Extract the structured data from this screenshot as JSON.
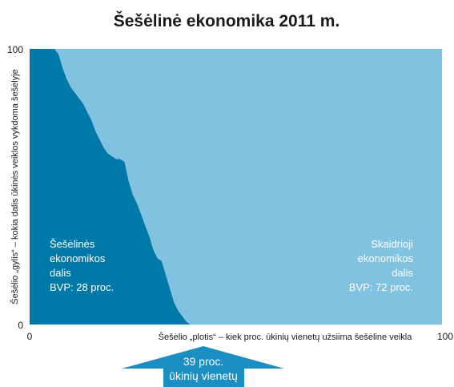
{
  "chart_data": {
    "type": "area",
    "title": "Šešėlinė ekonomika 2011 m.",
    "xlabel": "Šešėlio „plotis“ – kiek proc. ūkinių vienetų užsiima šešėline veikla",
    "ylabel": "Šešėlio „gylis“ – kokia dalis ūkinės veiklos vykdoma šešėlyje",
    "xlim": [
      0,
      100
    ],
    "ylim": [
      0,
      100
    ],
    "x_ticks": [
      "0",
      "100"
    ],
    "y_ticks": [
      "0",
      "100"
    ],
    "grid": false,
    "series": [
      {
        "x": [
          0,
          6,
          7,
          8,
          9,
          10,
          11,
          12,
          13,
          14,
          15,
          16,
          17,
          18,
          19,
          20,
          21,
          22,
          23,
          24,
          25,
          26,
          27,
          28,
          29,
          30,
          31,
          32,
          33,
          34,
          35,
          36,
          37,
          38,
          39
        ],
        "y": [
          100,
          100,
          98,
          93,
          89,
          86,
          84,
          82,
          80,
          77,
          74,
          70,
          67,
          64,
          62,
          61,
          60,
          60,
          59,
          52,
          47,
          44,
          40,
          36,
          32,
          27,
          24,
          23,
          18,
          13,
          8,
          5,
          3,
          1,
          0
        ]
      }
    ],
    "dark_color": "#0079a8",
    "light_color": "#80c2e0"
  },
  "annotations": {
    "left_region": [
      "Šešėlinės",
      "ekonomikos",
      "dalis",
      "BVP: 28 proc."
    ],
    "right_region": [
      "Skaidrioji",
      "ekonomikos",
      "dalis",
      "BVP: 72 proc."
    ],
    "arrow": [
      "39 proc.",
      "ūkinių vienetų"
    ],
    "arrow_color": "#1c8fc2"
  }
}
